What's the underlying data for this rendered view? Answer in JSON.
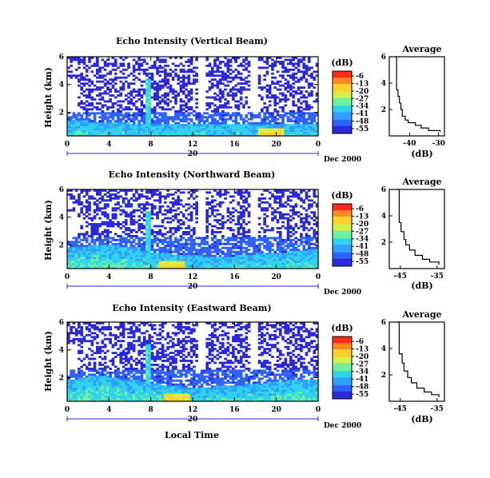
{
  "figure": {
    "date_label": "Dec 2000",
    "day_label": "20",
    "xlabel_bottom": "Local Time",
    "colorbar_unit": "(dB)",
    "colorbar_ticks": [
      "-6",
      "-13",
      "-20",
      "-27",
      "-34",
      "-41",
      "-48",
      "-55"
    ],
    "colorscale": [
      "#2a2bd6",
      "#2f63ff",
      "#2fa0ff",
      "#2fd3ee",
      "#6df0a0",
      "#d6f048",
      "#ffd22a",
      "#ff8a1f",
      "#ff2a1a"
    ],
    "empty_color": "#ffffff",
    "line_color": "#000000",
    "axis_blue": "#2a2bd6"
  },
  "chart_data": [
    {
      "type": "heatmap",
      "title": "Echo Intensity (Vertical Beam)",
      "xlabel": "",
      "ylabel": "Height (km)",
      "x_ticks": [
        "0",
        "4",
        "8",
        "12",
        "16",
        "20",
        "0"
      ],
      "y_ticks": [
        "2",
        "4",
        "6"
      ],
      "xlim": [
        0,
        24
      ],
      "ylim": [
        0.3,
        6
      ],
      "zlim": [
        -55,
        -6
      ],
      "z_unit": "dB",
      "features": {
        "layer_top_km": [
          1.4,
          1.4,
          1.3,
          1.3,
          1.3,
          1.3,
          1.2,
          1.2,
          1.2,
          1.2,
          1.2,
          1.2,
          1.2,
          1.2,
          1.2,
          1.2,
          1.2,
          1.2,
          1.2,
          1.2,
          1.2,
          1.2,
          1.2,
          1.2,
          1.2
        ],
        "spike_hour": 7.8,
        "bright_hour": 19.5,
        "cloud_from_km": 2.0
      }
    },
    {
      "type": "line",
      "title": "Average",
      "xlabel": "(dB)",
      "ylabel": "",
      "x_ticks": [
        "-40",
        "-30"
      ],
      "y_ticks": [
        "2",
        "4",
        "6"
      ],
      "xlim": [
        -47,
        -28
      ],
      "ylim": [
        0,
        6
      ],
      "series": [
        {
          "x": [
            -29.5,
            -33.5,
            -36.0,
            -38.0,
            -40.5,
            -41.5,
            -42.5,
            -43.0,
            -43.5,
            -44.0,
            -44.5,
            -45.0
          ],
          "y": [
            0.3,
            0.4,
            0.6,
            0.8,
            1.0,
            1.2,
            1.5,
            2.0,
            2.5,
            3.0,
            3.5,
            6.0
          ]
        }
      ]
    },
    {
      "type": "heatmap",
      "title": "Echo Intensity (Northward Beam)",
      "xlabel": "",
      "ylabel": "Height (km)",
      "x_ticks": [
        "0",
        "4",
        "8",
        "12",
        "16",
        "20",
        "0"
      ],
      "y_ticks": [
        "2",
        "4",
        "6"
      ],
      "xlim": [
        0,
        24
      ],
      "ylim": [
        0.3,
        6
      ],
      "zlim": [
        -55,
        -6
      ],
      "z_unit": "dB",
      "features": {
        "layer_top_km": [
          1.8,
          1.9,
          2.0,
          2.0,
          2.0,
          1.9,
          1.8,
          1.6,
          1.5,
          1.4,
          1.3,
          1.3,
          1.3,
          1.2,
          1.2,
          1.2,
          1.3,
          1.3,
          1.4,
          1.5,
          1.5,
          1.6,
          1.6,
          1.7,
          1.8
        ],
        "spike_hour": 7.8,
        "bright_hour": 10.0,
        "cloud_from_km": 2.6
      }
    },
    {
      "type": "line",
      "title": "Average",
      "xlabel": "(dB)",
      "ylabel": "",
      "x_ticks": [
        "-45",
        "-35"
      ],
      "y_ticks": [
        "2",
        "4",
        "6"
      ],
      "xlim": [
        -48,
        -33
      ],
      "ylim": [
        0,
        6
      ],
      "series": [
        {
          "x": [
            -34.5,
            -37.0,
            -39.0,
            -41.0,
            -42.5,
            -43.5,
            -44.0,
            -44.8,
            -45.3,
            -45.8
          ],
          "y": [
            0.3,
            0.5,
            0.7,
            1.0,
            1.4,
            1.8,
            2.2,
            2.8,
            3.5,
            6.0
          ]
        }
      ]
    },
    {
      "type": "heatmap",
      "title": "Echo Intensity (Eastward Beam)",
      "xlabel": "Local Time",
      "ylabel": "Height (km)",
      "x_ticks": [
        "0",
        "4",
        "8",
        "12",
        "16",
        "20",
        "0"
      ],
      "y_ticks": [
        "2",
        "4",
        "6"
      ],
      "xlim": [
        0,
        24
      ],
      "ylim": [
        0.3,
        6
      ],
      "zlim": [
        -55,
        -6
      ],
      "z_unit": "dB",
      "features": {
        "layer_top_km": [
          1.9,
          2.0,
          2.1,
          2.1,
          2.0,
          1.9,
          1.8,
          1.7,
          1.6,
          1.5,
          1.4,
          1.3,
          1.3,
          1.3,
          1.4,
          1.4,
          1.5,
          1.6,
          1.6,
          1.7,
          1.7,
          1.8,
          1.8,
          1.9,
          1.9
        ],
        "spike_hour": 7.8,
        "bright_hour": 10.5,
        "cloud_from_km": 2.6
      }
    },
    {
      "type": "line",
      "title": "Average",
      "xlabel": "(dB)",
      "ylabel": "",
      "x_ticks": [
        "-45",
        "-35"
      ],
      "y_ticks": [
        "2",
        "4",
        "6"
      ],
      "xlim": [
        -48,
        -33
      ],
      "ylim": [
        0,
        6
      ],
      "series": [
        {
          "x": [
            -34.5,
            -36.5,
            -38.5,
            -40.5,
            -42.0,
            -43.0,
            -44.0,
            -44.5,
            -45.3,
            -45.8
          ],
          "y": [
            0.3,
            0.5,
            0.7,
            1.0,
            1.4,
            1.8,
            2.3,
            2.9,
            3.6,
            6.0
          ]
        }
      ]
    }
  ]
}
